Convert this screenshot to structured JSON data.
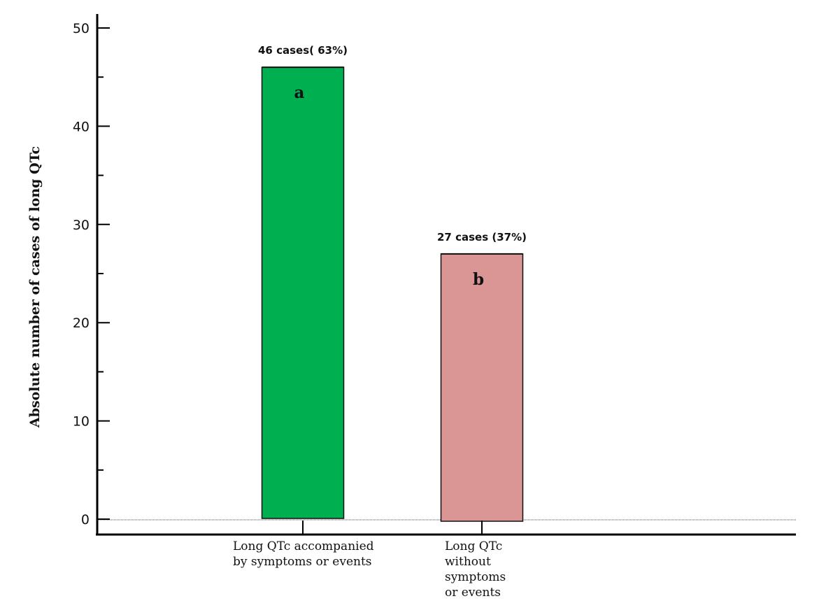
{
  "chart_data": {
    "type": "bar",
    "categories": [
      [
        "Long QTc accompanied",
        "by symptoms or events"
      ],
      [
        "Long QTc",
        "without",
        "symptoms",
        "or events"
      ]
    ],
    "values": [
      46,
      27
    ],
    "data_labels": [
      "46 cases( 63%)",
      "27 cases (37%)"
    ],
    "bar_letters": [
      "a",
      "b"
    ],
    "colors": [
      "#00b050",
      "#d99694"
    ],
    "title": "",
    "xlabel": "",
    "ylabel": "Absolute number of cases of long QTc",
    "ylim": [
      0,
      50
    ],
    "yticks": [
      0,
      10,
      20,
      30,
      40,
      50
    ],
    "grid": false,
    "legend": "none"
  }
}
